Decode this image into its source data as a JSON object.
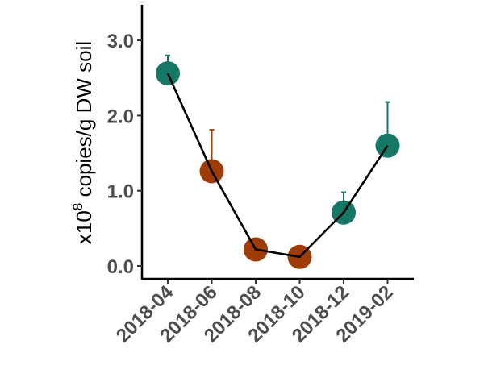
{
  "chart_data": {
    "type": "scatter",
    "categories": [
      "2018-04",
      "2018-06",
      "2018-08",
      "2018-10",
      "2018-12",
      "2019-02"
    ],
    "values": [
      2.56,
      1.26,
      0.22,
      0.12,
      0.71,
      1.6
    ],
    "error_upper": [
      2.8,
      1.81,
      0.22,
      0.12,
      0.98,
      2.18
    ],
    "trend_line": [
      2.56,
      1.26,
      0.22,
      0.12,
      0.71,
      1.6
    ],
    "point_colors": [
      "#177767",
      "#9e3c07",
      "#9e3c07",
      "#9e3c07",
      "#177767",
      "#177767"
    ],
    "line_color": "#000000",
    "yticks": [
      "0.0",
      "1.0",
      "2.0",
      "3.0"
    ],
    "ytick_values": [
      0,
      1,
      2,
      3
    ],
    "ylim": [
      -0.15,
      3.45
    ],
    "ylabel_prefix": "x10",
    "ylabel_exponent": "8",
    "ylabel_suffix": " copies/g DW soil",
    "grid": false,
    "legend": "none"
  }
}
